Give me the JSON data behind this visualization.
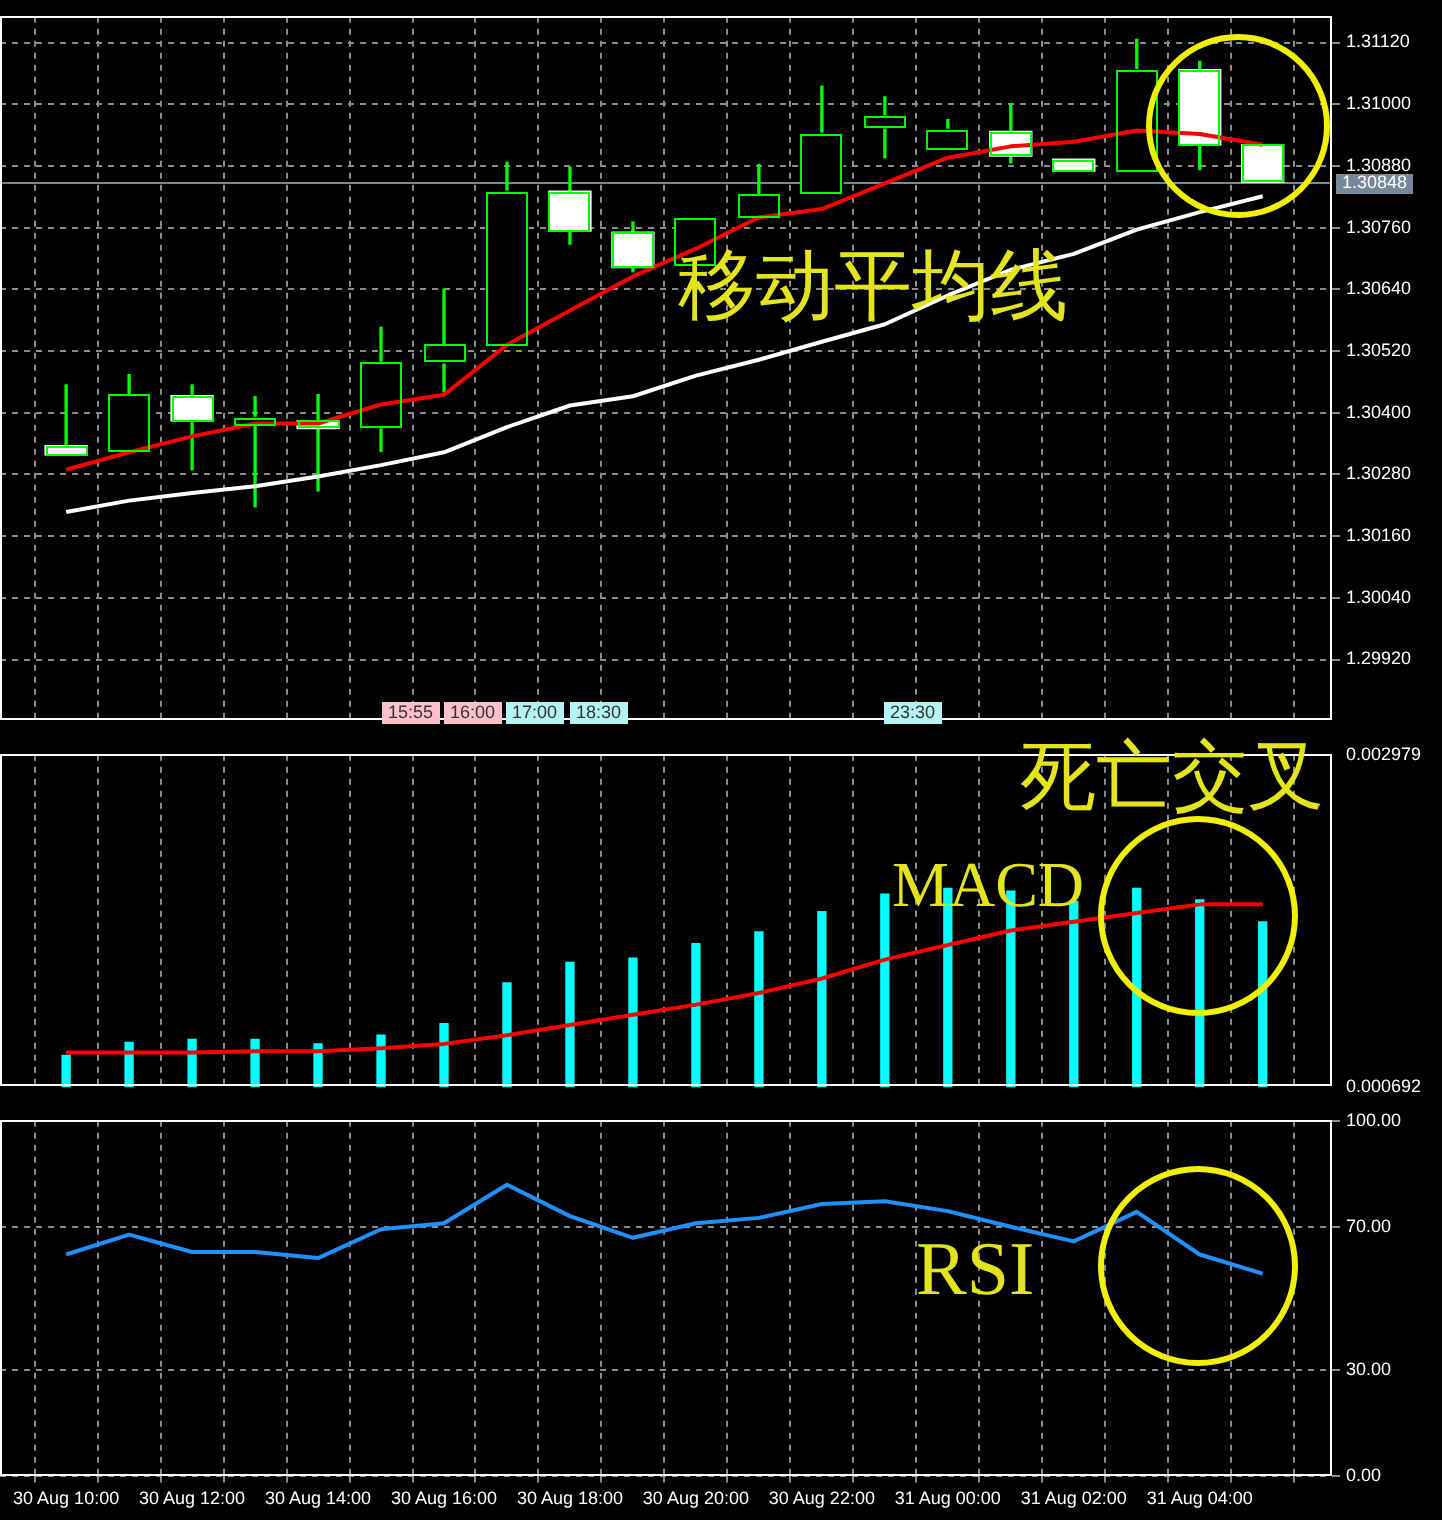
{
  "chart_data": [
    {
      "type": "candlestick",
      "categories": [
        null,
        null,
        null,
        null,
        null,
        null,
        null,
        null,
        null,
        null,
        null,
        null,
        null,
        null,
        null,
        null,
        null,
        null,
        null,
        null
      ],
      "ohlc": [
        [
          1.30336,
          1.30454,
          1.30318,
          1.30318
        ],
        [
          1.30321,
          1.30474,
          1.30321,
          1.30435
        ],
        [
          1.30433,
          1.30454,
          1.30289,
          1.30384
        ],
        [
          1.30376,
          1.30431,
          1.30217,
          1.30391
        ],
        [
          1.30384,
          1.30435,
          1.30248,
          1.30369
        ],
        [
          1.30371,
          1.30566,
          1.30325,
          1.30498
        ],
        [
          1.30497,
          1.3064,
          1.30441,
          1.30532
        ],
        [
          1.30532,
          1.30887,
          1.30532,
          1.30831
        ],
        [
          1.30831,
          1.30877,
          1.30728,
          1.30753
        ],
        [
          1.30751,
          1.30771,
          1.30674,
          1.30682
        ],
        [
          1.30685,
          1.30779,
          1.30685,
          1.30779
        ],
        [
          1.30777,
          1.30883,
          1.30777,
          1.30824
        ],
        [
          1.30827,
          1.31035,
          1.30827,
          1.30943
        ],
        [
          1.30954,
          1.31014,
          1.30896,
          1.30977
        ],
        [
          1.30913,
          1.3097,
          1.30913,
          1.30951
        ],
        [
          1.30947,
          1.30998,
          1.30886,
          1.30899
        ],
        [
          1.30893,
          1.30893,
          1.3087,
          1.3087
        ],
        [
          1.3087,
          1.31126,
          1.3087,
          1.31067
        ],
        [
          1.31067,
          1.31083,
          1.30873,
          1.30921
        ],
        [
          1.30921,
          1.30921,
          1.30848,
          1.30848
        ]
      ],
      "colors": [
        "#ffffff",
        "#000000",
        "#ffffff",
        "#000000",
        "#ffffff",
        "#000000",
        "#000000",
        "#000000",
        "#ffffff",
        "#ffffff",
        "#000000",
        "#000000",
        "#000000",
        "#000000",
        "#000000",
        "#ffffff",
        "#ffffff",
        "#000000",
        "#ffffff",
        "#ffffff"
      ],
      "series": [
        {
          "type": "line",
          "color": "#ff0000",
          "values": [
            1.30289,
            1.30323,
            1.30354,
            1.30379,
            1.30379,
            1.30416,
            1.30435,
            1.30532,
            1.30599,
            1.30665,
            1.30719,
            1.3078,
            1.30796,
            1.30846,
            1.30896,
            1.30918,
            1.30927,
            1.30949,
            1.30942,
            1.30921
          ]
        },
        {
          "type": "line",
          "color": "#ffffff",
          "values": [
            1.30207,
            1.30229,
            1.30244,
            1.30257,
            1.30276,
            1.30298,
            1.30323,
            1.30372,
            1.30414,
            1.30432,
            1.30472,
            1.30503,
            1.30538,
            1.30572,
            1.30628,
            1.30678,
            1.30709,
            1.30756,
            1.3079,
            1.30821
          ]
        }
      ],
      "ylim": [
        1.298,
        1.3117
      ],
      "yticks": [
        {
          "value": 1.2992,
          "label": "1.29920"
        },
        {
          "value": 1.3004,
          "label": "1.30040"
        },
        {
          "value": 1.3016,
          "label": "1.30160"
        },
        {
          "value": 1.3028,
          "label": "1.30280"
        },
        {
          "value": 1.304,
          "label": "1.30400"
        },
        {
          "value": 1.3052,
          "label": "1.30520"
        },
        {
          "value": 1.3064,
          "label": "1.30640"
        },
        {
          "value": 1.3076,
          "label": "1.30760"
        },
        {
          "value": 1.3088,
          "label": "1.30880"
        },
        {
          "value": 1.31,
          "label": "1.31000"
        },
        {
          "value": 1.3112,
          "label": "1.31120"
        }
      ],
      "ref_lines": [
        {
          "axis": "y",
          "value": 1.30848,
          "label": "1.30848",
          "color": "#778899"
        }
      ],
      "grid": true,
      "tick_labels": "y",
      "annotations": [
        "移动平均线",
        "15:55",
        "16:00",
        "17:00",
        "18:30",
        "23:30"
      ]
    },
    {
      "type": "bar",
      "categories": [
        null,
        null,
        null,
        null,
        null,
        null,
        null,
        null,
        null,
        null,
        null,
        null,
        null,
        null,
        null,
        null,
        null,
        null,
        null,
        null
      ],
      "series": [
        {
          "type": "bar",
          "color": "#00ffff",
          "values": [
            0.00091,
            0.001,
            0.00102,
            0.00102,
            0.00099,
            0.00105,
            0.00113,
            0.00141,
            0.00155,
            0.00158,
            0.00168,
            0.00176,
            0.0019,
            0.00202,
            0.00206,
            0.00204,
            0.00197,
            0.00206,
            0.00198,
            0.00183
          ]
        },
        {
          "type": "line",
          "color": "#ff0000",
          "values": [
            0.00093,
            0.00093,
            0.00093,
            0.00094,
            0.00094,
            0.00096,
            0.00099,
            0.00105,
            0.00112,
            0.00119,
            0.00126,
            0.00134,
            0.00144,
            0.00157,
            0.00167,
            0.00177,
            0.00183,
            0.00189,
            0.00195,
            0.00195
          ]
        }
      ],
      "ylim": [
        0.000692,
        0.002979
      ],
      "yticks": [
        0.000692,
        0.002979
      ],
      "grid": "x",
      "tick_labels": "y",
      "annotations": [
        "死亡交叉",
        "MACD"
      ]
    },
    {
      "type": "line",
      "categories": [
        "30 Aug 10:00",
        null,
        "30 Aug 12:00",
        null,
        "30 Aug 14:00",
        null,
        "30 Aug 16:00",
        null,
        "30 Aug 18:00",
        null,
        "30 Aug 20:00",
        null,
        "30 Aug 22:00",
        null,
        "31 Aug 00:00",
        null,
        "31 Aug 02:00",
        null,
        "31 Aug 04:00",
        null
      ],
      "series": [
        {
          "color": "#1e90ff",
          "values": [
            62.4,
            68.0,
            63.1,
            63.1,
            61.4,
            69.5,
            71.2,
            82.0,
            73.2,
            67.1,
            71.2,
            72.7,
            76.6,
            77.4,
            74.6,
            70.2,
            66.1,
            74.4,
            62.4,
            57.0
          ]
        }
      ],
      "ylim": [
        0,
        100
      ],
      "yticks": [
        {
          "value": 0,
          "label": "0.00"
        },
        {
          "value": 30,
          "label": "30.00"
        },
        {
          "value": 70,
          "label": "70.00"
        },
        {
          "value": 100,
          "label": "100.00"
        }
      ],
      "grid": true,
      "annotations": [
        "RSI"
      ]
    }
  ]
}
